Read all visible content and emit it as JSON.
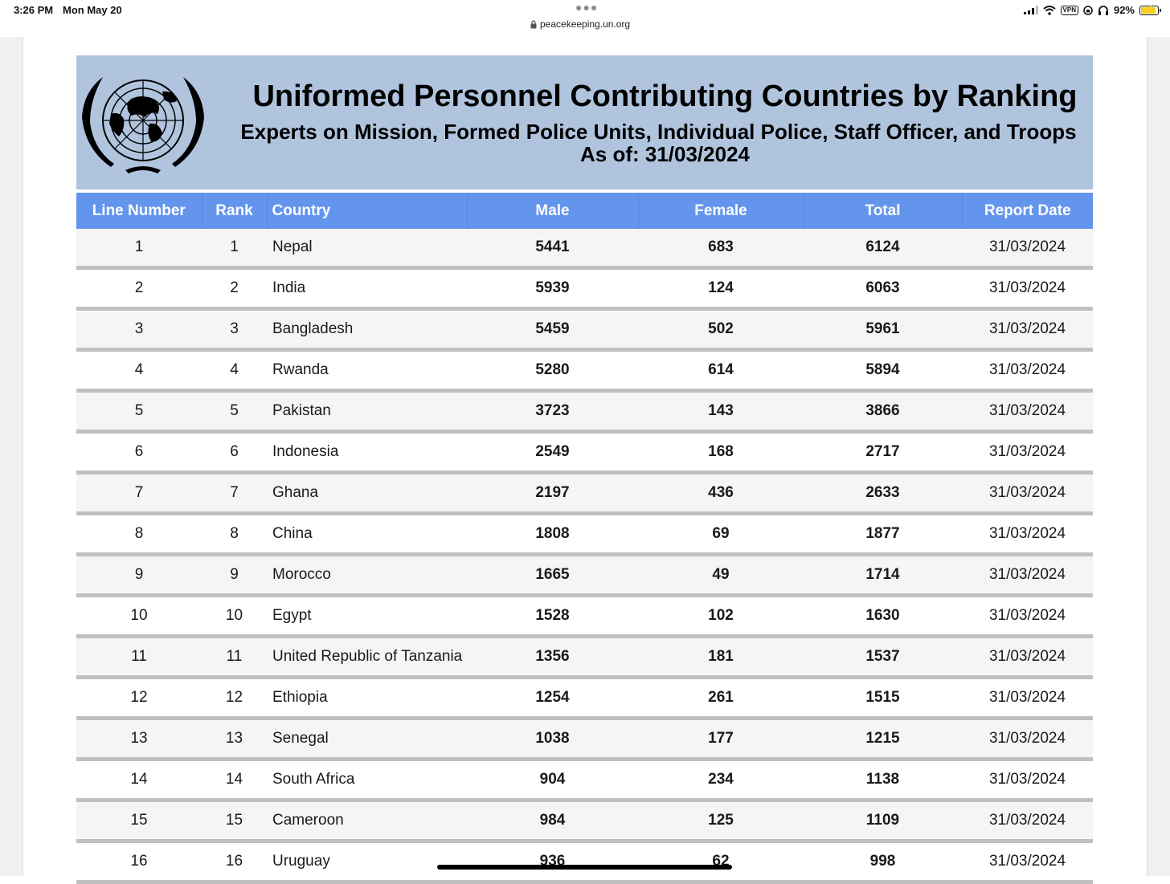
{
  "status_bar": {
    "time": "3:26 PM",
    "date": "Mon May 20",
    "url": "peacekeeping.un.org",
    "battery": "92%",
    "vpn_label": "VPN"
  },
  "banner": {
    "title": "Uniformed Personnel Contributing Countries by Ranking",
    "subtitle": "Experts on Mission, Formed Police Units, Individual Police, Staff Officer, and Troops",
    "as_of": "As of: 31/03/2024",
    "background_color": "#b0c4de"
  },
  "table": {
    "header_color": "#6495ed",
    "columns": [
      "Line Number",
      "Rank",
      "Country",
      "Male",
      "Female",
      "Total",
      "Report Date"
    ],
    "rows": [
      [
        "1",
        "1",
        "Nepal",
        "5441",
        "683",
        "6124",
        "31/03/2024"
      ],
      [
        "2",
        "2",
        "India",
        "5939",
        "124",
        "6063",
        "31/03/2024"
      ],
      [
        "3",
        "3",
        "Bangladesh",
        "5459",
        "502",
        "5961",
        "31/03/2024"
      ],
      [
        "4",
        "4",
        "Rwanda",
        "5280",
        "614",
        "5894",
        "31/03/2024"
      ],
      [
        "5",
        "5",
        "Pakistan",
        "3723",
        "143",
        "3866",
        "31/03/2024"
      ],
      [
        "6",
        "6",
        "Indonesia",
        "2549",
        "168",
        "2717",
        "31/03/2024"
      ],
      [
        "7",
        "7",
        "Ghana",
        "2197",
        "436",
        "2633",
        "31/03/2024"
      ],
      [
        "8",
        "8",
        "China",
        "1808",
        "69",
        "1877",
        "31/03/2024"
      ],
      [
        "9",
        "9",
        "Morocco",
        "1665",
        "49",
        "1714",
        "31/03/2024"
      ],
      [
        "10",
        "10",
        "Egypt",
        "1528",
        "102",
        "1630",
        "31/03/2024"
      ],
      [
        "11",
        "11",
        "United Republic of Tanzania",
        "1356",
        "181",
        "1537",
        "31/03/2024"
      ],
      [
        "12",
        "12",
        "Ethiopia",
        "1254",
        "261",
        "1515",
        "31/03/2024"
      ],
      [
        "13",
        "13",
        "Senegal",
        "1038",
        "177",
        "1215",
        "31/03/2024"
      ],
      [
        "14",
        "14",
        "South Africa",
        "904",
        "234",
        "1138",
        "31/03/2024"
      ],
      [
        "15",
        "15",
        "Cameroon",
        "984",
        "125",
        "1109",
        "31/03/2024"
      ],
      [
        "16",
        "16",
        "Uruguay",
        "936",
        "62",
        "998",
        "31/03/2024"
      ]
    ]
  }
}
